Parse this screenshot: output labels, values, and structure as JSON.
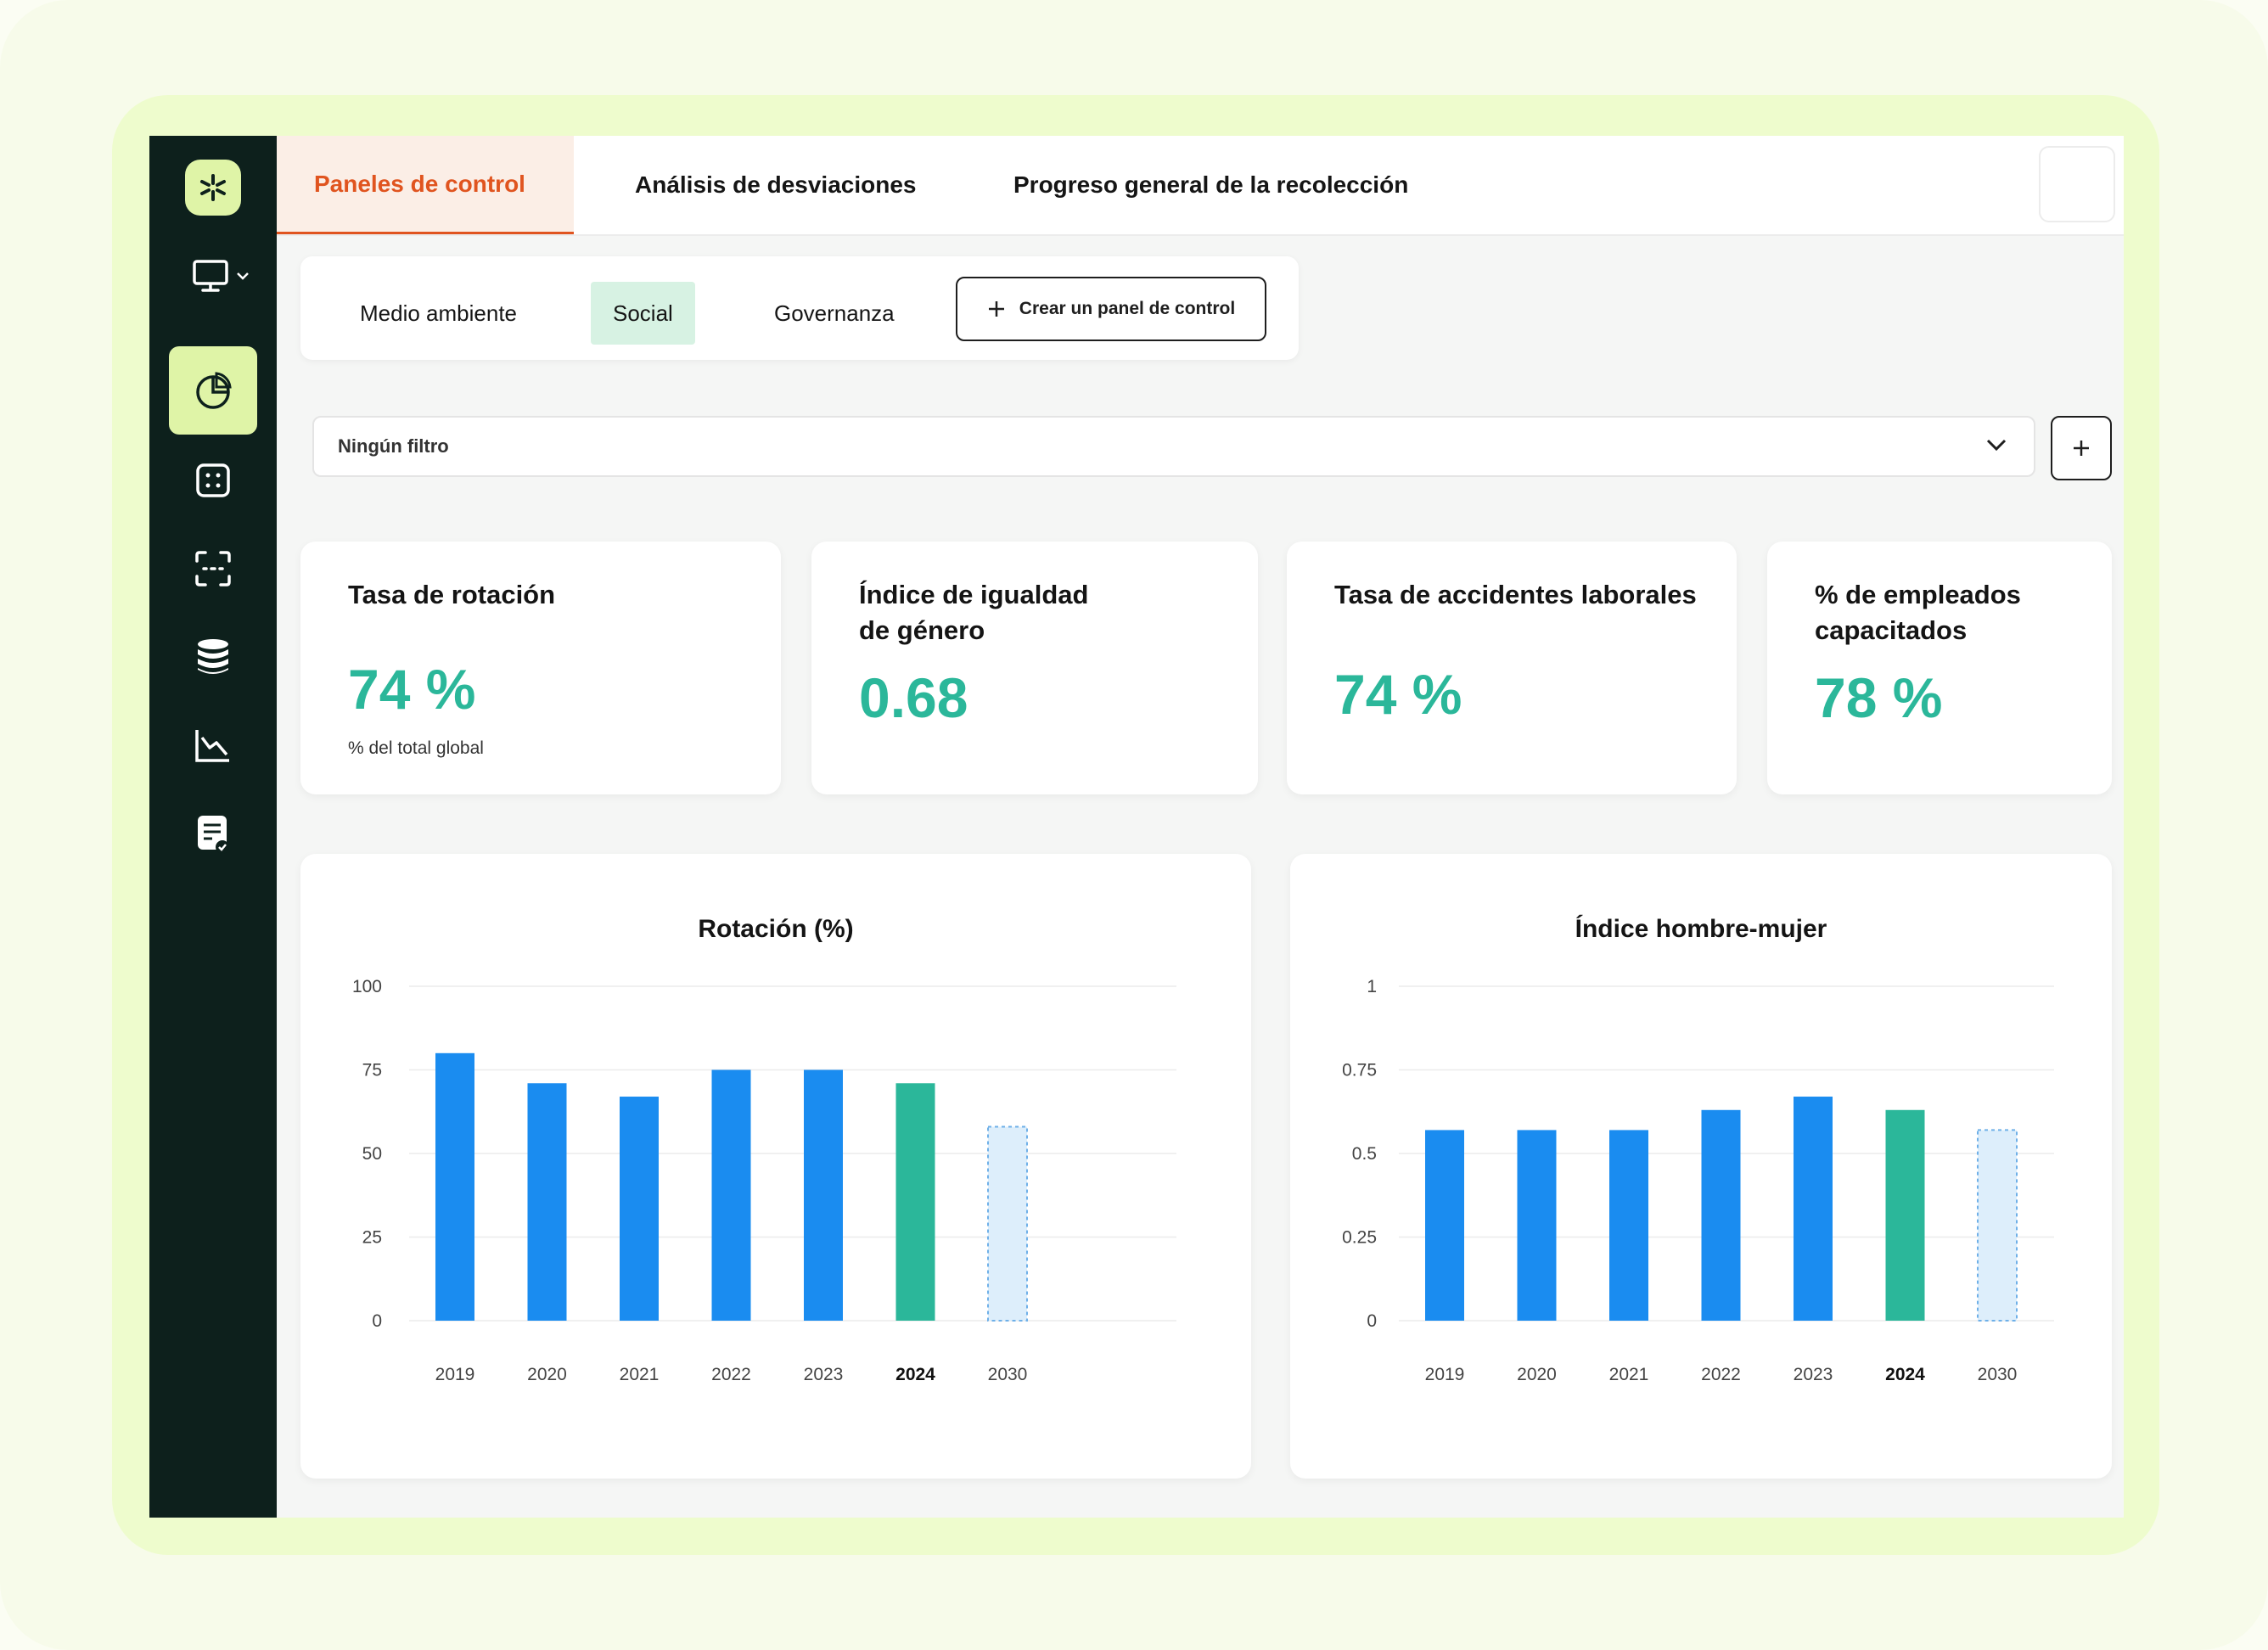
{
  "top_tabs": [
    {
      "label": "Paneles de control"
    },
    {
      "label": "Análisis de desviaciones"
    },
    {
      "label": "Progreso general de la recolección"
    }
  ],
  "sub_tabs": [
    {
      "label": "Medio ambiente"
    },
    {
      "label": "Social"
    },
    {
      "label": "Governanza"
    }
  ],
  "create_button": {
    "label": "Crear un panel de control"
  },
  "filter": {
    "selected": "Ningún filtro"
  },
  "sidebar_icons": [
    "logo-icon",
    "monitor-icon",
    "pie-chart-icon",
    "grid-icon",
    "scan-icon",
    "database-icon",
    "line-chart-icon",
    "checklist-icon"
  ],
  "kpis": [
    {
      "title": "Tasa de rotación",
      "value": "74 %",
      "subtitle": "% del total global"
    },
    {
      "title": "Índice de igualdad de género",
      "value": "0.68"
    },
    {
      "title": "Tasa de accidentes laborales",
      "value": "74 %"
    },
    {
      "title": "% de empleados capacitados",
      "value": "78 %"
    }
  ],
  "colors": {
    "accent": "#e0541f",
    "bar_blue": "#1a8cf0",
    "bar_green": "#2bb79a",
    "target_fill": "#ddeefb",
    "sidebar": "#0d201c",
    "logo_bg": "#dff4a7"
  },
  "chart_data": [
    {
      "type": "bar",
      "title": "Rotación (%)",
      "categories": [
        "2019",
        "2020",
        "2021",
        "2022",
        "2023",
        "2024",
        "2030"
      ],
      "highlight_category": "2024",
      "target_category": "2030",
      "values": [
        80,
        71,
        67,
        75,
        75,
        71,
        58
      ],
      "ylim": [
        0,
        100
      ],
      "yticks": [
        0,
        25,
        50,
        75,
        100
      ],
      "ytick_labels": [
        "0",
        "25",
        "50",
        "75",
        "100"
      ],
      "grid": true
    },
    {
      "type": "bar",
      "title": "Índice hombre-mujer",
      "categories": [
        "2019",
        "2020",
        "2021",
        "2022",
        "2023",
        "2024",
        "2030"
      ],
      "highlight_category": "2024",
      "target_category": "2030",
      "values": [
        0.57,
        0.57,
        0.57,
        0.63,
        0.67,
        0.63,
        0.57
      ],
      "ylim": [
        0,
        1
      ],
      "yticks": [
        0,
        0.25,
        0.5,
        0.75,
        1
      ],
      "ytick_labels": [
        "0",
        "0.25",
        "0.5",
        "0.75",
        "1"
      ],
      "grid": true
    }
  ]
}
